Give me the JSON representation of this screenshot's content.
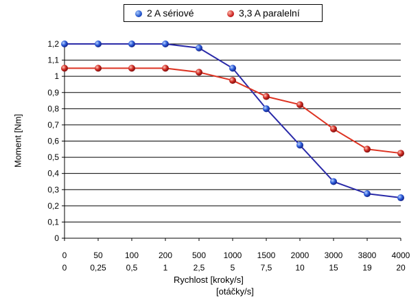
{
  "chart_data": {
    "type": "line",
    "categories": [
      "0",
      "50",
      "100",
      "200",
      "500",
      "1000",
      "1500",
      "2000",
      "3000",
      "3800",
      "4000"
    ],
    "categories_secondary": [
      "0",
      "0,25",
      "0,5",
      "1",
      "2,5",
      "5",
      "7,5",
      "10",
      "15",
      "19",
      "20"
    ],
    "series": [
      {
        "name": "2 A sériové",
        "color": "#2a2aa8",
        "values": [
          1.2,
          1.2,
          1.2,
          1.2,
          1.175,
          1.05,
          0.8,
          0.575,
          0.35,
          0.275,
          0.25
        ]
      },
      {
        "name": "3,3 A paralelní",
        "color": "#dd3322",
        "values": [
          1.05,
          1.05,
          1.05,
          1.05,
          1.025,
          0.975,
          0.875,
          0.825,
          0.675,
          0.55,
          0.525
        ]
      }
    ],
    "xlabel": "Rychlost [kroky/s]",
    "xlabel_secondary": "[otáčky/s]",
    "ylabel": "Moment [Nm]",
    "ylim": [
      0,
      1.2
    ],
    "yticks": [
      "0",
      "0,1",
      "0,2",
      "0,3",
      "0,4",
      "0,5",
      "0,6",
      "0,7",
      "0,8",
      "0,9",
      "1",
      "1,1",
      "1,2"
    ],
    "grid": true,
    "legend_position": "top"
  }
}
